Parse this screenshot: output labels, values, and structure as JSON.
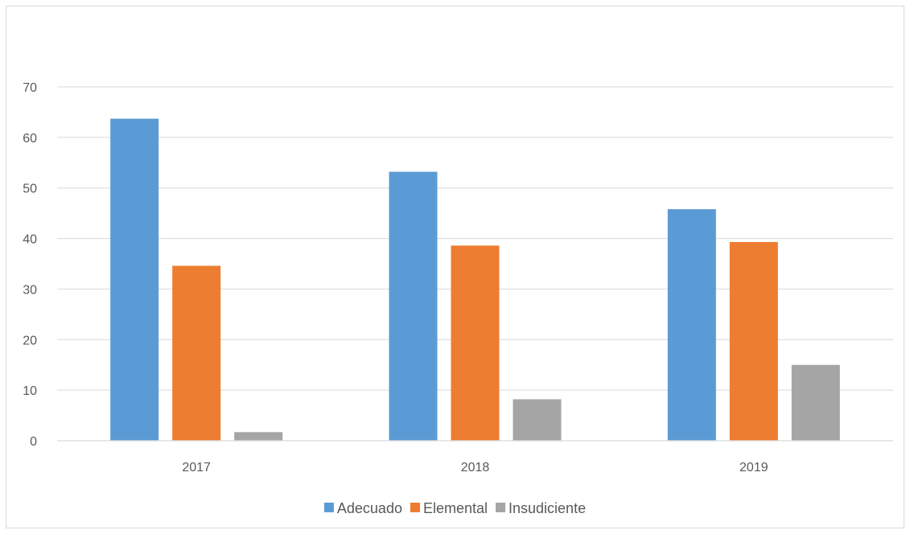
{
  "chart_data": {
    "type": "bar",
    "title": "",
    "xlabel": "",
    "ylabel": "",
    "categories": [
      "2017",
      "2018",
      "2019"
    ],
    "series": [
      {
        "name": "Adecuado",
        "color": "#5b9bd5",
        "values": [
          63.7,
          53.2,
          45.8
        ]
      },
      {
        "name": "Elemental",
        "color": "#ed7d31",
        "values": [
          34.6,
          38.6,
          39.3
        ]
      },
      {
        "name": "Insudiciente",
        "color": "#a5a5a5",
        "values": [
          1.7,
          8.2,
          15.0
        ]
      }
    ],
    "ylim": [
      0,
      70
    ],
    "yticks": [
      0,
      10,
      20,
      30,
      40,
      50,
      60,
      70
    ],
    "grid": true,
    "legend_position": "bottom"
  }
}
